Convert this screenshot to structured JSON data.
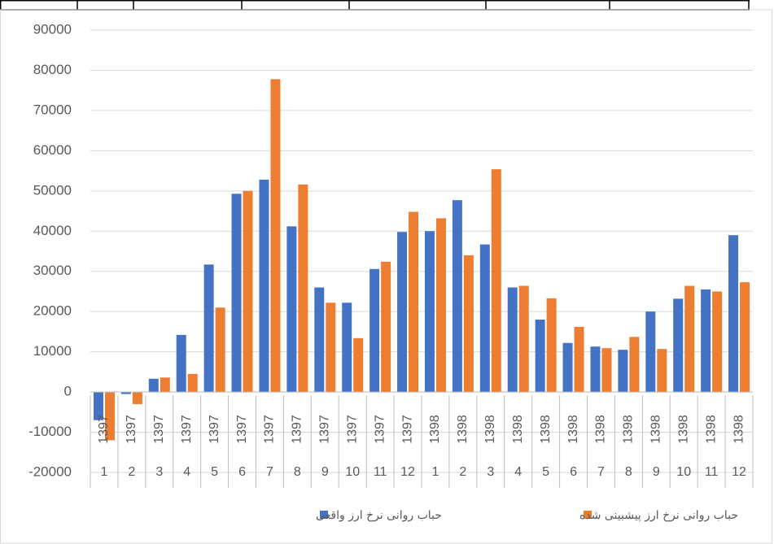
{
  "chart_data": {
    "type": "bar",
    "categories": [
      "1",
      "2",
      "3",
      "4",
      "5",
      "6",
      "7",
      "8",
      "9",
      "10",
      "11",
      "12",
      "1",
      "2",
      "3",
      "4",
      "5",
      "6",
      "7",
      "8",
      "9",
      "10",
      "11",
      "12"
    ],
    "years": [
      "1397",
      "1397",
      "1397",
      "1397",
      "1397",
      "1397",
      "1397",
      "1397",
      "1397",
      "1397",
      "1397",
      "1397",
      "1398",
      "1398",
      "1398",
      "1398",
      "1398",
      "1398",
      "1398",
      "1398",
      "1398",
      "1398",
      "1398",
      "1398"
    ],
    "series": [
      {
        "name": "حباب روانی نرخ ارز واقعی",
        "color": "#4472c4",
        "values": [
          -7000,
          -500,
          3300,
          14200,
          31700,
          49300,
          52800,
          41200,
          26000,
          22200,
          30600,
          39800,
          40000,
          47700,
          36700,
          26000,
          18000,
          12200,
          11300,
          10500,
          20000,
          23200,
          25500,
          39000
        ]
      },
      {
        "name": "حباب روانی نرخ ارز پیشبینی شده",
        "color": "#ed7d31",
        "values": [
          -12000,
          -3000,
          3600,
          4500,
          21000,
          50000,
          77800,
          51600,
          22200,
          13400,
          32400,
          44800,
          43200,
          34000,
          55400,
          26400,
          23300,
          16200,
          10900,
          13700,
          10700,
          26400,
          25000,
          27300
        ]
      }
    ],
    "ylim": [
      -20000,
      90000
    ],
    "yticks": [
      -20000,
      -10000,
      0,
      10000,
      20000,
      30000,
      40000,
      50000,
      60000,
      70000,
      80000,
      90000
    ],
    "grid": true
  }
}
